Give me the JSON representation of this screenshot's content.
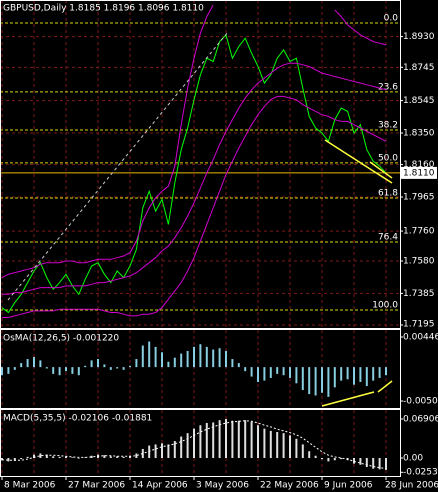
{
  "chart_data": [
    {
      "type": "line",
      "title": "GBPUSD,Daily  1.8185 1.8196 1.8096 1.8110",
      "categories": [
        "8 Mar 2006",
        null,
        null,
        null,
        null,
        null,
        null,
        null,
        null,
        null,
        "27 Mar 2006",
        null,
        null,
        null,
        null,
        null,
        null,
        null,
        null,
        null,
        "14 Apr 2006",
        null,
        null,
        null,
        null,
        null,
        null,
        null,
        null,
        null,
        "3 May 2006",
        null,
        null,
        null,
        null,
        null,
        null,
        null,
        null,
        null,
        "22 May 2006",
        null,
        null,
        null,
        null,
        null,
        null,
        null,
        null,
        null,
        "9 Jun 2006",
        null,
        null,
        null,
        null,
        null,
        null,
        null,
        null,
        null,
        "28 Jun 2006"
      ],
      "series": [
        {
          "color": "#00ff00",
          "values": [
            1.73,
            1.727,
            1.733,
            1.738,
            1.745,
            1.752,
            1.757,
            1.748,
            1.741,
            1.745,
            1.75,
            1.743,
            1.738,
            1.747,
            1.755,
            1.757,
            1.75,
            1.745,
            1.752,
            1.748,
            1.755,
            1.765,
            1.79,
            1.8,
            1.788,
            1.795,
            1.78,
            1.805,
            1.825,
            1.838,
            1.855,
            1.87,
            1.88,
            1.878,
            1.89,
            1.894,
            1.88,
            1.887,
            1.892,
            1.883,
            1.875,
            1.865,
            1.87,
            1.88,
            1.885,
            1.878,
            1.88,
            1.862,
            1.845,
            1.838,
            1.835,
            1.83,
            1.843,
            1.85,
            1.848,
            1.835,
            1.84,
            1.825,
            1.818,
            1.815,
            1.811
          ]
        },
        {
          "color": "#d000d0",
          "values": [
            1.748,
            1.75,
            1.751,
            1.752,
            1.753,
            1.754,
            1.756,
            1.757,
            1.757,
            1.757,
            1.758,
            1.758,
            1.757,
            1.757,
            1.758,
            1.759,
            1.759,
            1.759,
            1.76,
            1.761,
            1.763,
            1.77,
            1.782,
            1.79,
            1.796,
            1.8,
            1.803,
            1.815,
            1.84,
            1.862,
            1.88,
            1.895,
            1.905,
            1.912,
            null,
            null,
            null,
            null,
            null,
            null,
            null,
            null,
            null,
            null,
            null,
            null,
            null,
            null,
            null,
            null,
            null,
            null,
            1.909,
            1.905,
            1.9,
            1.897,
            1.894,
            1.892,
            1.89,
            1.889,
            1.888
          ]
        },
        {
          "color": "#d000d0",
          "values": [
            1.738,
            1.738,
            1.739,
            1.739,
            1.74,
            1.741,
            1.742,
            1.742,
            1.742,
            1.742,
            1.743,
            1.743,
            1.743,
            1.743,
            1.744,
            1.745,
            1.745,
            1.746,
            1.747,
            1.748,
            1.749,
            1.751,
            1.754,
            1.757,
            1.76,
            1.764,
            1.767,
            1.772,
            1.778,
            1.785,
            1.793,
            1.802,
            1.811,
            1.819,
            1.828,
            1.836,
            1.843,
            1.85,
            1.856,
            1.861,
            1.865,
            1.868,
            1.871,
            1.874,
            1.876,
            1.877,
            1.877,
            1.876,
            1.875,
            1.873,
            1.871,
            1.87,
            1.869,
            1.868,
            1.867,
            1.866,
            1.865,
            1.864,
            1.863,
            1.862,
            1.861
          ]
        },
        {
          "color": "#d000d0",
          "values": [
            1.724,
            1.724,
            1.725,
            1.726,
            1.727,
            1.728,
            1.728,
            1.728,
            1.728,
            1.729,
            1.729,
            1.729,
            1.729,
            1.729,
            1.729,
            1.729,
            1.728,
            1.727,
            1.727,
            1.726,
            1.725,
            1.725,
            1.726,
            1.726,
            1.727,
            1.73,
            1.735,
            1.74,
            1.745,
            1.752,
            1.76,
            1.77,
            1.78,
            1.79,
            1.8,
            1.81,
            1.818,
            1.826,
            1.833,
            1.84,
            1.846,
            1.851,
            1.855,
            1.857,
            1.857,
            1.856,
            1.855,
            1.852,
            1.85,
            1.848,
            1.846,
            1.845,
            1.843,
            1.842,
            1.842,
            1.84,
            1.838,
            1.836,
            1.834,
            1.832,
            1.83
          ]
        }
      ],
      "levels": [
        {
          "label": "0.0",
          "value": 1.9012
        },
        {
          "label": "23.6",
          "value": 1.8597
        },
        {
          "label": "38.2",
          "value": 1.8368
        },
        {
          "label": "50.0",
          "value": 1.817
        },
        {
          "label": "61.8",
          "value": 1.7959
        },
        {
          "label": "76.4",
          "value": 1.7694
        },
        {
          "label": "100.0",
          "value": 1.7285
        }
      ],
      "level_color": "#d4d400",
      "current_price": {
        "value": 1.811,
        "label": "1.8110"
      },
      "ylim": [
        1.7177,
        1.915
      ],
      "yticks": [
        {
          "value": 1.893,
          "label": "1.8930"
        },
        {
          "value": 1.8745,
          "label": "1.8745"
        },
        {
          "value": 1.8545,
          "label": "1.8545"
        },
        {
          "value": 1.835,
          "label": "1.8350"
        },
        {
          "value": 1.816,
          "label": "1.8160"
        },
        {
          "value": 1.7965,
          "label": "1.7965"
        },
        {
          "value": 1.776,
          "label": "1.7760"
        },
        {
          "value": 1.758,
          "label": "1.7580"
        },
        {
          "value": 1.7385,
          "label": "1.7385"
        },
        {
          "value": 1.7195,
          "label": "1.7195"
        }
      ],
      "grid": true
    },
    {
      "type": "bar",
      "title": "OsMA(12,26,5) -0.001220",
      "color": "#87cee0",
      "values": [
        -0.0012,
        -0.001,
        -0.0004,
        0.0006,
        0.0012,
        0.0015,
        0.001,
        -0.0002,
        -0.001,
        -0.0012,
        -0.0006,
        -0.001,
        -0.0012,
        0.0002,
        0.001,
        0.0012,
        0.0004,
        -0.0004,
        -0.0002,
        -0.0004,
        0.0002,
        0.0012,
        0.0032,
        0.0038,
        0.003,
        0.0022,
        0.0008,
        0.0014,
        0.002,
        0.0024,
        0.003,
        0.0034,
        0.003,
        0.0026,
        0.0028,
        0.0024,
        0.0012,
        0.0006,
        -0.0006,
        -0.0014,
        -0.0022,
        -0.002,
        -0.0016,
        -0.001,
        -0.0012,
        -0.0016,
        -0.0024,
        -0.0034,
        -0.004,
        -0.0042,
        -0.0038,
        -0.0044,
        -0.003,
        -0.002,
        -0.0018,
        -0.0026,
        -0.0022,
        -0.0028,
        -0.002,
        -0.0016,
        -0.0012
      ],
      "ylim": [
        -0.006057,
        0.005502
      ],
      "yticks": [
        0.004465,
        -0.00502
      ]
    },
    {
      "type": "bar",
      "title": "MACD(5,35,5) -0.02106 -0.01881",
      "color": "#e0e0e0",
      "values": [
        -0.004,
        -0.006,
        -0.005,
        -0.002,
        0.002,
        0.006,
        0.008,
        0.006,
        0.003,
        0.002,
        0.003,
        0.001,
        -0.001,
        0.001,
        0.004,
        0.006,
        0.005,
        0.003,
        0.003,
        0.002,
        0.004,
        0.008,
        0.016,
        0.022,
        0.024,
        0.026,
        0.024,
        0.03,
        0.038,
        0.044,
        0.052,
        0.058,
        0.062,
        0.063,
        0.067,
        0.069,
        0.066,
        0.066,
        0.067,
        0.064,
        0.058,
        0.052,
        0.048,
        0.046,
        0.044,
        0.04,
        0.034,
        0.024,
        0.012,
        0.004,
        -0.002,
        -0.006,
        -0.004,
        -0.002,
        -0.004,
        -0.01,
        -0.012,
        -0.016,
        -0.019,
        -0.02,
        -0.02106
      ],
      "signal": {
        "color": "#ffffff",
        "values": [
          -0.003,
          -0.004,
          -0.004,
          -0.004,
          -0.002,
          0.001,
          0.004,
          0.005,
          0.005,
          0.004,
          0.003,
          0.002,
          0.001,
          0.001,
          0.002,
          0.003,
          0.004,
          0.004,
          0.003,
          0.003,
          0.003,
          0.004,
          0.008,
          0.012,
          0.016,
          0.02,
          0.022,
          0.025,
          0.029,
          0.034,
          0.04,
          0.046,
          0.051,
          0.055,
          0.059,
          0.062,
          0.064,
          0.065,
          0.066,
          0.065,
          0.062,
          0.058,
          0.055,
          0.051,
          0.048,
          0.045,
          0.041,
          0.035,
          0.027,
          0.019,
          0.011,
          0.005,
          0.002,
          0.0,
          -0.002,
          -0.006,
          -0.009,
          -0.012,
          -0.015,
          -0.017,
          -0.01881
        ]
      },
      "ylim": [
        -0.0319,
        0.085
      ],
      "yticks": [
        0.06906,
        {
          "value": 0,
          "label": "0.00"
        },
        -0.02535
      ]
    }
  ]
}
